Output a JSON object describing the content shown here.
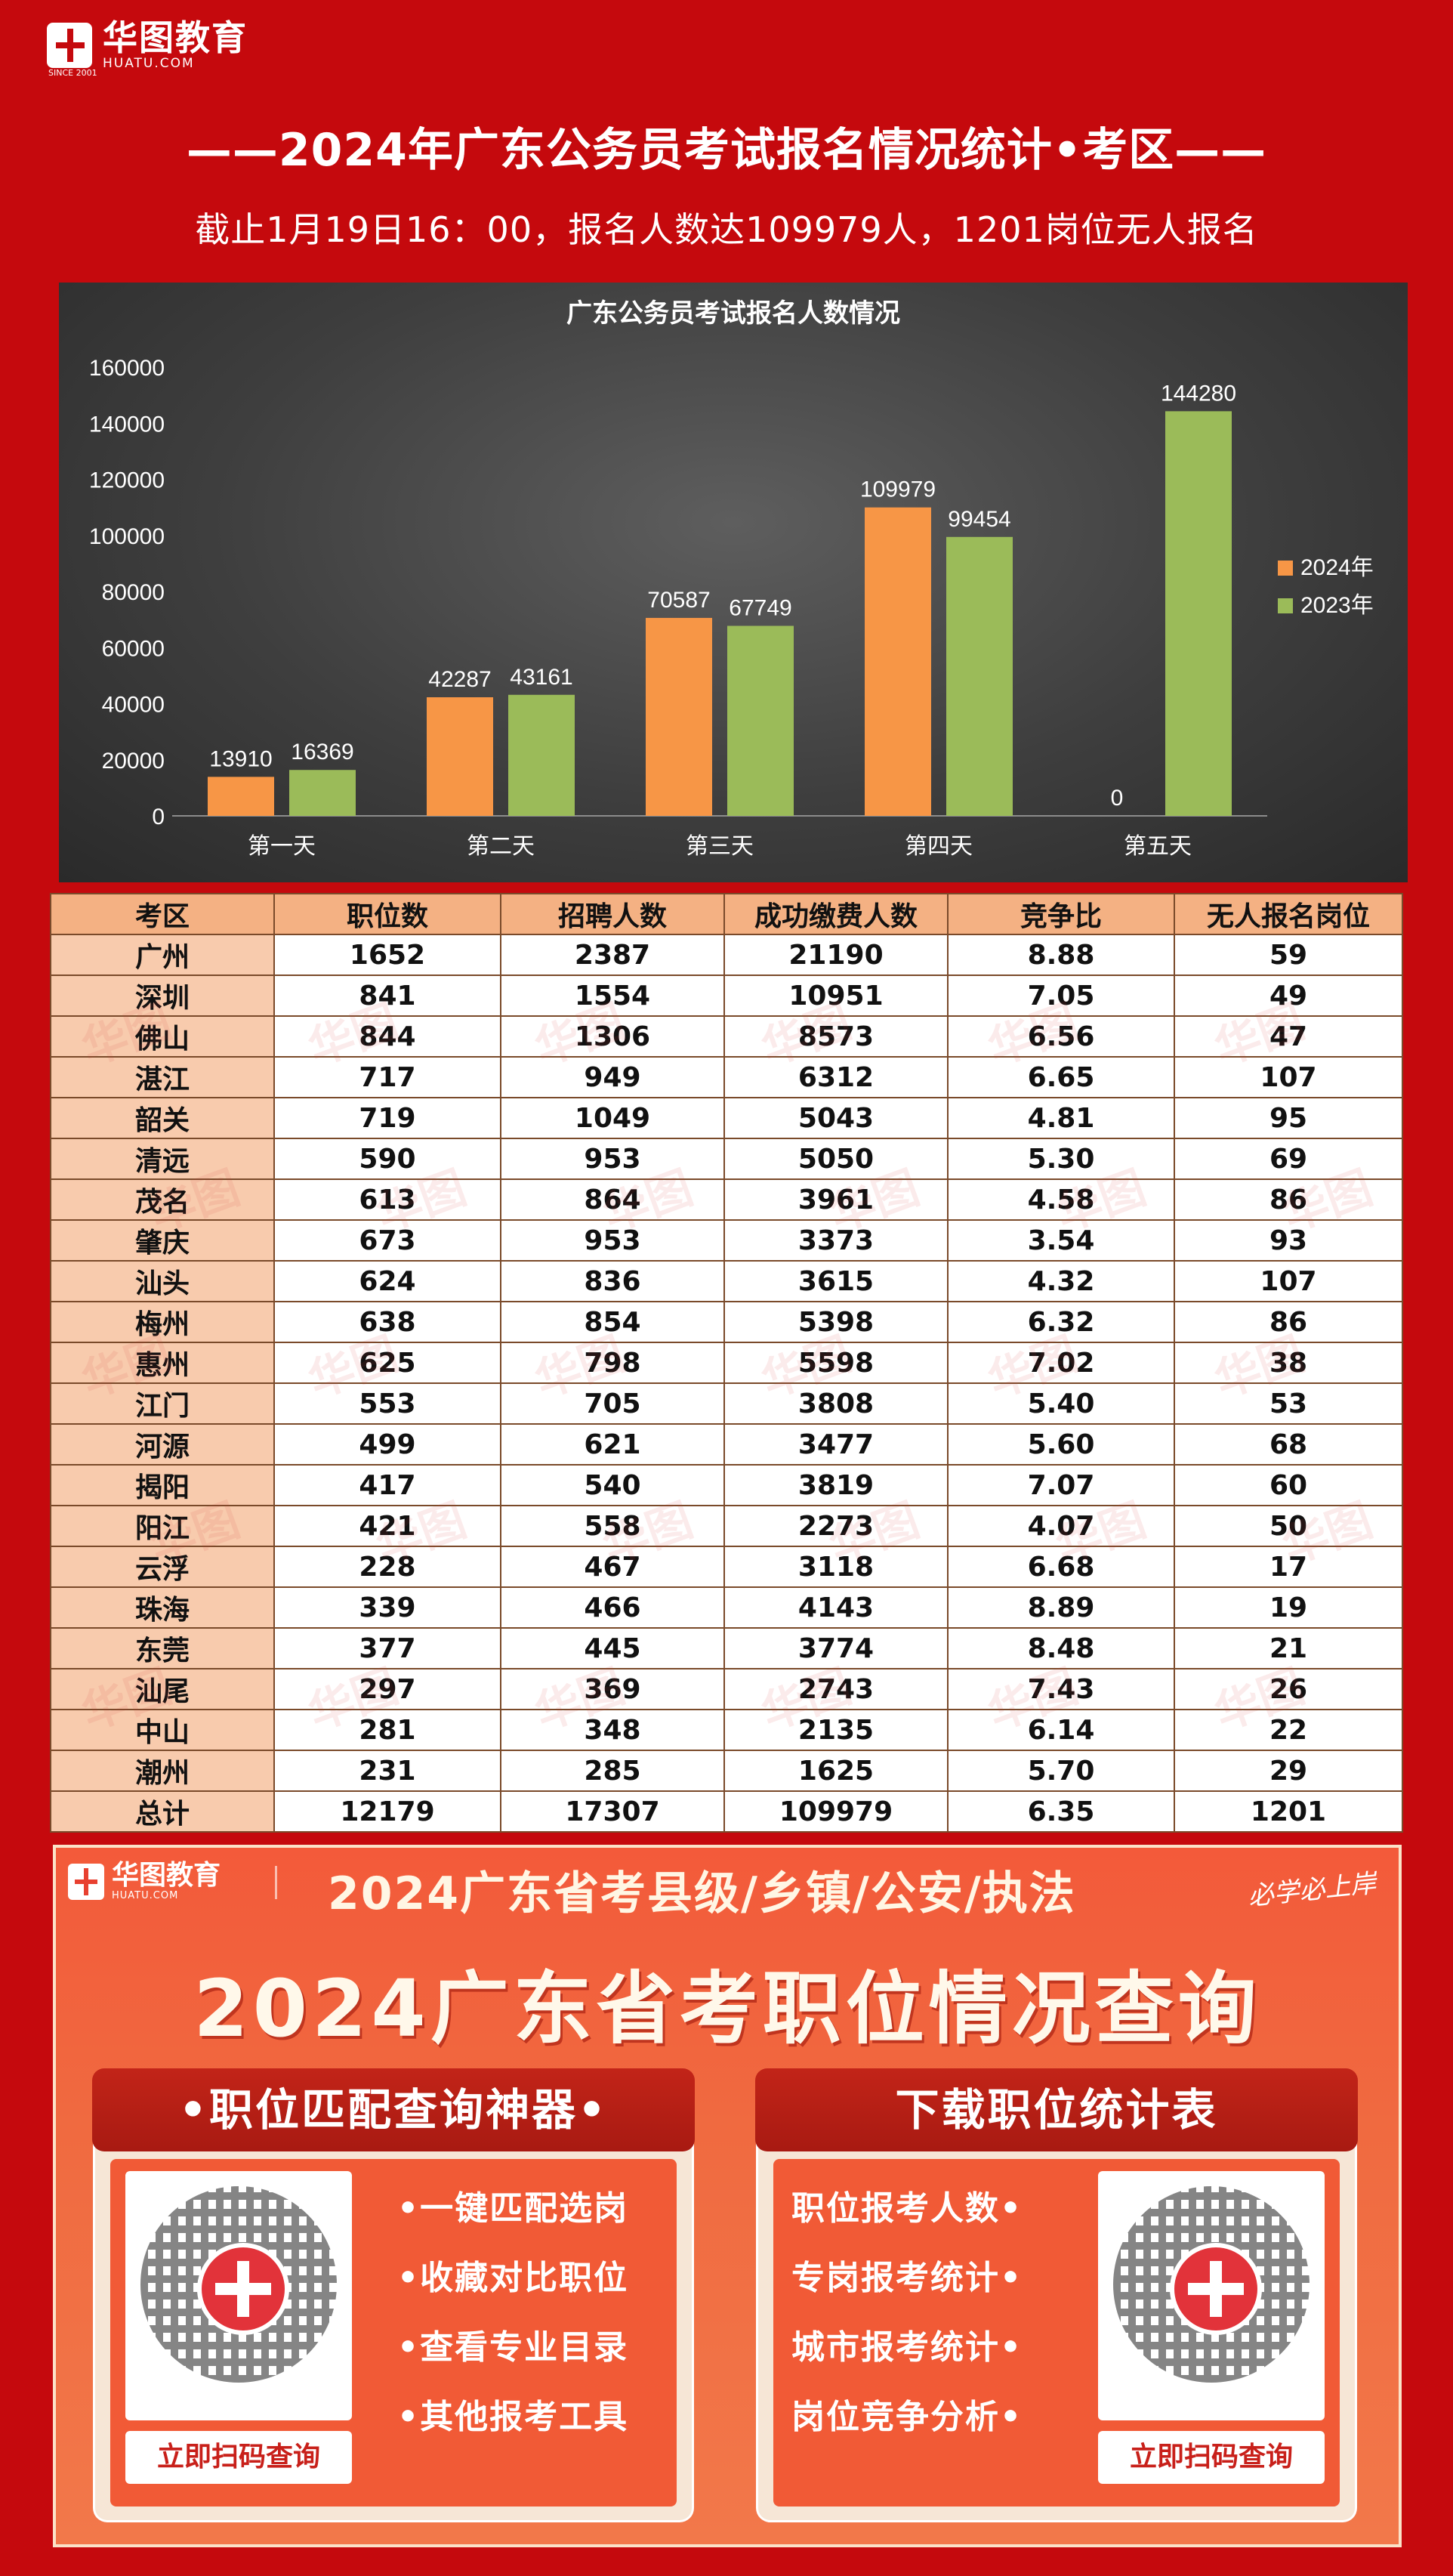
{
  "brand": {
    "name_cn": "华图教育",
    "name_en": "HUATU.COM",
    "since": "SINCE 2001"
  },
  "title": "——2024年广东公务员考试报名情况统计•考区——",
  "subtitle": "截止1月19日16：00，报名人数达109979人，1201岗位无人报名",
  "chart_data": {
    "type": "bar",
    "title": "广东公务员考试报名人数情况",
    "categories": [
      "第一天",
      "第二天",
      "第三天",
      "第四天",
      "第五天"
    ],
    "series": [
      {
        "name": "2024年",
        "values": [
          13910,
          42287,
          70587,
          109979,
          0
        ],
        "color": "#f79646"
      },
      {
        "name": "2023年",
        "values": [
          16369,
          43161,
          67749,
          99454,
          144280
        ],
        "color": "#9bbb59"
      }
    ],
    "ylim": [
      0,
      160000
    ],
    "yticks": [
      0,
      20000,
      40000,
      60000,
      80000,
      100000,
      120000,
      140000,
      160000
    ],
    "xlabel": "",
    "ylabel": "",
    "grid": false,
    "legend": "right"
  },
  "table": {
    "headers": [
      "考区",
      "职位数",
      "招聘人数",
      "成功缴费人数",
      "竞争比",
      "无人报名岗位"
    ],
    "rows": [
      [
        "广州",
        "1652",
        "2387",
        "21190",
        "8.88",
        "59"
      ],
      [
        "深圳",
        "841",
        "1554",
        "10951",
        "7.05",
        "49"
      ],
      [
        "佛山",
        "844",
        "1306",
        "8573",
        "6.56",
        "47"
      ],
      [
        "湛江",
        "717",
        "949",
        "6312",
        "6.65",
        "107"
      ],
      [
        "韶关",
        "719",
        "1049",
        "5043",
        "4.81",
        "95"
      ],
      [
        "清远",
        "590",
        "953",
        "5050",
        "5.30",
        "69"
      ],
      [
        "茂名",
        "613",
        "864",
        "3961",
        "4.58",
        "86"
      ],
      [
        "肇庆",
        "673",
        "953",
        "3373",
        "3.54",
        "93"
      ],
      [
        "汕头",
        "624",
        "836",
        "3615",
        "4.32",
        "107"
      ],
      [
        "梅州",
        "638",
        "854",
        "5398",
        "6.32",
        "86"
      ],
      [
        "惠州",
        "625",
        "798",
        "5598",
        "7.02",
        "38"
      ],
      [
        "江门",
        "553",
        "705",
        "3808",
        "5.40",
        "53"
      ],
      [
        "河源",
        "499",
        "621",
        "3477",
        "5.60",
        "68"
      ],
      [
        "揭阳",
        "417",
        "540",
        "3819",
        "7.07",
        "60"
      ],
      [
        "阳江",
        "421",
        "558",
        "2273",
        "4.07",
        "50"
      ],
      [
        "云浮",
        "228",
        "467",
        "3118",
        "6.68",
        "17"
      ],
      [
        "珠海",
        "339",
        "466",
        "4143",
        "8.89",
        "19"
      ],
      [
        "东莞",
        "377",
        "445",
        "3774",
        "8.48",
        "21"
      ],
      [
        "汕尾",
        "297",
        "369",
        "2743",
        "7.43",
        "26"
      ],
      [
        "中山",
        "281",
        "348",
        "2135",
        "6.14",
        "22"
      ],
      [
        "潮州",
        "231",
        "285",
        "1625",
        "5.70",
        "29"
      ]
    ],
    "total": [
      "总计",
      "12179",
      "17307",
      "109979",
      "6.35",
      "1201"
    ]
  },
  "banner": {
    "logo_cn": "华图教育",
    "logo_en": "HUATU.COM",
    "headline": "2024广东省考县级/乡镇/公安/执法",
    "slogan": "必学必上岸",
    "big_title": "2024广东省考职位情况查询",
    "left_panel": {
      "title": "•职位匹配查询神器•",
      "features": [
        "•一键匹配选岗",
        "•收藏对比职位",
        "•查看专业目录",
        "•其他报考工具"
      ],
      "button": "立即扫码查询"
    },
    "right_panel": {
      "title": "下载职位统计表",
      "features": [
        "职位报考人数•",
        "专岗报考统计•",
        "城市报考统计•",
        "岗位竞争分析•"
      ],
      "button": "立即扫码查询"
    }
  }
}
